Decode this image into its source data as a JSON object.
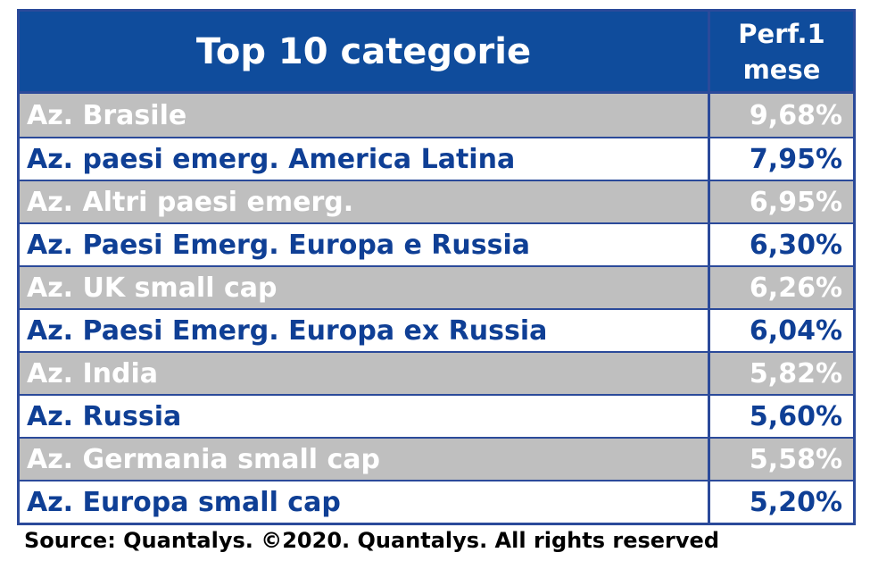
{
  "chart_data": {
    "type": "table",
    "title": "Top 10 categorie",
    "columns": [
      "Top 10 categorie",
      "Perf.1 mese"
    ],
    "header_value_lines": [
      "Perf.1",
      "mese"
    ],
    "rows": [
      {
        "name": "Az. Brasile",
        "value": "9,68%"
      },
      {
        "name": "Az. paesi emerg. America Latina",
        "value": "7,95%"
      },
      {
        "name": "Az. Altri paesi emerg.",
        "value": "6,95%"
      },
      {
        "name": "Az. Paesi Emerg. Europa e Russia",
        "value": "6,30%"
      },
      {
        "name": "Az. UK small cap",
        "value": "6,26%"
      },
      {
        "name": "Az. Paesi Emerg. Europa ex Russia",
        "value": "6,04%"
      },
      {
        "name": "Az. India",
        "value": "5,82%"
      },
      {
        "name": "Az. Russia",
        "value": "5,60%"
      },
      {
        "name": "Az. Germania small cap",
        "value": "5,58%"
      },
      {
        "name": "Az. Europa small cap",
        "value": "5,20%"
      }
    ]
  },
  "footer": {
    "source": "Source: Quantalys. ©2020. Quantalys. All rights reserved"
  },
  "colors": {
    "header_bg": "#0f4c9c",
    "border": "#2b4a9a",
    "odd_row_bg": "#bfbfbf",
    "even_row_text": "#0f3f95"
  }
}
